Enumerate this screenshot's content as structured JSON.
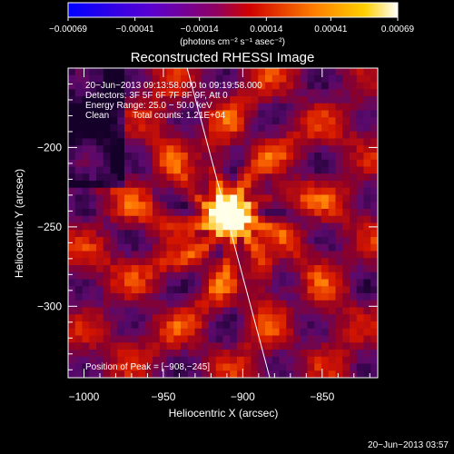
{
  "chart_data": {
    "type": "heatmap",
    "title": "Reconstructed RHESSI Image",
    "xlabel": "Heliocentric X (arcsec)",
    "ylabel": "Heliocentric Y (arcsec)",
    "xlim": [
      -1010,
      -815
    ],
    "ylim": [
      -345,
      -150
    ],
    "x_ticks": [
      -1000,
      -950,
      -900,
      -850
    ],
    "y_ticks": [
      -200,
      -250,
      -300
    ],
    "x_tick_labels": [
      "−1000",
      "−950",
      "−900",
      "−850"
    ],
    "y_tick_labels": [
      "−200",
      "−250",
      "−300"
    ],
    "colorbar": {
      "range": [
        -0.00069,
        0.00069
      ],
      "ticks": [
        -0.00069,
        -0.00041,
        -0.00014,
        0.00014,
        0.00041,
        0.00069
      ],
      "tick_labels": [
        "−0.00069",
        "−0.00041",
        "−0.00014",
        "0.00014",
        "0.00041",
        "0.00069"
      ],
      "unit_label": "(photons cm⁻² s⁻¹ asec⁻²)",
      "colors": [
        "#0000ff",
        "#800080",
        "#ff0000",
        "#ffa500",
        "#ffffff"
      ]
    },
    "annotations": {
      "time_range": "20−Jun−2013 09:13:58.000 to 09:19:58.000",
      "detectors": "Detectors: 3F 5F 6F 7F 8F 9F, Att 0",
      "energy_range": "Energy Range: 25.0 − 50.0 keV",
      "algorithm": "Clean",
      "total_counts": "Total counts: 1.21E+04",
      "peak_position": "Position of Peak = [−908,−245]"
    },
    "peak": {
      "x": -908,
      "y": -245
    },
    "limb_line": [
      {
        "x": -935,
        "y": -150
      },
      {
        "x": -883,
        "y": -345
      }
    ]
  },
  "footer": {
    "timestamp": "20−Jun−2013 03:57"
  }
}
